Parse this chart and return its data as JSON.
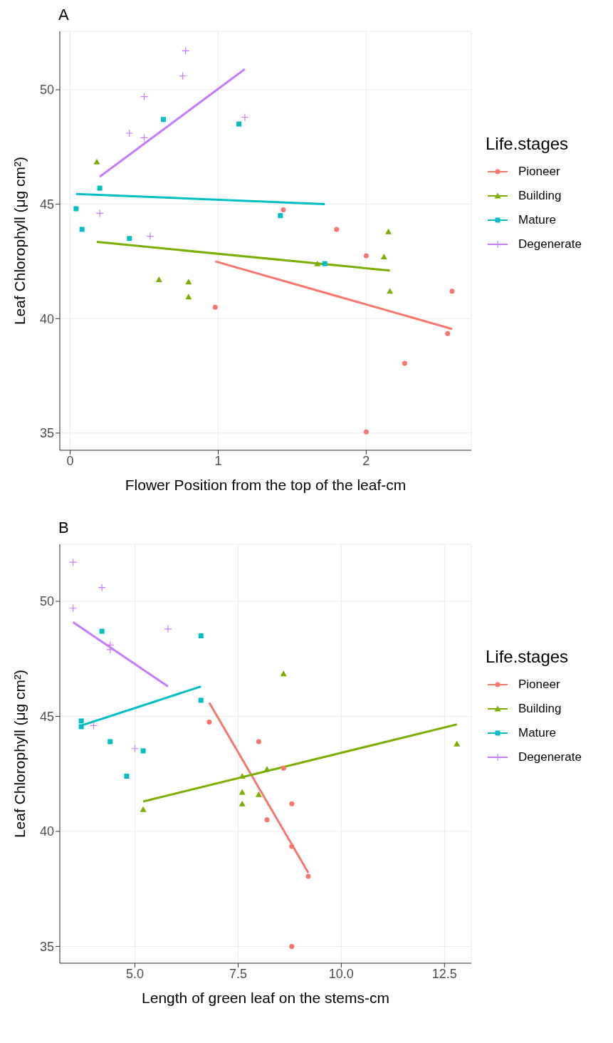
{
  "chart_data": [
    {
      "type": "scatter",
      "title": "A",
      "xlabel": "Flower Position from the top of the leaf-cm",
      "ylabel": "Leaf Chlorophyll (μg cm²)",
      "legend_title": "Life.stages",
      "legend": "right",
      "grid": true,
      "xlim": [
        -0.07,
        2.71
      ],
      "xticks": [
        0,
        1,
        2
      ],
      "ylim": [
        34.25,
        52.55
      ],
      "yticks": [
        35,
        40,
        45,
        50
      ],
      "series": [
        {
          "name": "Pioneer",
          "type": "scatter",
          "marker": "circle",
          "color": "#f8766d",
          "x": [
            1.44,
            1.8,
            2.0,
            2.58,
            0.98,
            2.55,
            2.26,
            2.0
          ],
          "values": [
            44.75,
            43.9,
            42.75,
            41.2,
            40.5,
            39.35,
            38.05,
            35.05
          ]
        },
        {
          "name": "Building",
          "type": "scatter",
          "marker": "triangle",
          "color": "#7cae00",
          "x": [
            0.18,
            2.15,
            2.12,
            1.67,
            0.6,
            0.8,
            0.8,
            2.16
          ],
          "values": [
            46.85,
            43.8,
            42.7,
            42.4,
            41.7,
            41.6,
            40.95,
            41.2
          ]
        },
        {
          "name": "Mature",
          "type": "scatter",
          "marker": "square",
          "color": "#00bfc4",
          "x": [
            0.63,
            1.14,
            0.2,
            0.04,
            0.08,
            0.4,
            1.42,
            1.72
          ],
          "values": [
            48.7,
            48.5,
            45.7,
            44.8,
            43.9,
            43.5,
            44.5,
            42.4
          ]
        },
        {
          "name": "Degenerate",
          "type": "scatter",
          "marker": "cross",
          "color": "#c77cff",
          "x": [
            0.78,
            0.76,
            0.5,
            0.4,
            0.5,
            1.18,
            0.2,
            0.54
          ],
          "values": [
            51.7,
            50.6,
            49.7,
            48.1,
            47.9,
            48.8,
            44.6,
            43.6
          ]
        },
        {
          "type": "line",
          "color": "#f8766d",
          "x": [
            0.98,
            2.58
          ],
          "values": [
            42.5,
            39.55
          ]
        },
        {
          "type": "line",
          "color": "#7cae00",
          "x": [
            0.18,
            2.16
          ],
          "values": [
            43.35,
            42.1
          ]
        },
        {
          "type": "line",
          "color": "#00bfc4",
          "x": [
            0.04,
            1.72
          ],
          "values": [
            45.45,
            45.0
          ]
        },
        {
          "type": "line",
          "color": "#c77cff",
          "x": [
            0.2,
            1.18
          ],
          "values": [
            46.2,
            50.9
          ]
        }
      ]
    },
    {
      "type": "scatter",
      "title": "B",
      "xlabel": "Length of green leaf on the stems-cm",
      "ylabel": "Leaf Chlorophyll (μg cm²)",
      "legend_title": "Life.stages",
      "legend": "right",
      "grid": true,
      "xlim": [
        3.18,
        13.15
      ],
      "xticks": [
        {
          "value": 5,
          "label": "5.0"
        },
        7.5,
        {
          "value": 10,
          "label": "10.0"
        },
        12.5
      ],
      "ylim": [
        34.27,
        52.48
      ],
      "yticks": [
        35,
        40,
        45,
        50
      ],
      "series": [
        {
          "name": "Pioneer",
          "type": "scatter",
          "marker": "circle",
          "color": "#f8766d",
          "x": [
            6.8,
            8.0,
            8.6,
            8.8,
            8.2,
            8.8,
            9.2,
            8.8
          ],
          "values": [
            44.75,
            43.9,
            42.75,
            41.2,
            40.5,
            39.35,
            38.05,
            35.0
          ]
        },
        {
          "name": "Building",
          "type": "scatter",
          "marker": "triangle",
          "color": "#7cae00",
          "x": [
            8.6,
            12.8,
            8.2,
            7.6,
            7.6,
            8.0,
            7.6,
            5.2
          ],
          "values": [
            46.85,
            43.8,
            42.7,
            42.4,
            41.7,
            41.6,
            41.2,
            40.95
          ]
        },
        {
          "name": "Mature",
          "type": "scatter",
          "marker": "square",
          "color": "#00bfc4",
          "x": [
            4.2,
            6.6,
            6.6,
            3.7,
            3.7,
            4.4,
            5.2,
            4.8
          ],
          "values": [
            48.7,
            48.5,
            45.7,
            44.8,
            44.55,
            43.9,
            43.5,
            42.4
          ]
        },
        {
          "name": "Degenerate",
          "type": "scatter",
          "marker": "cross",
          "color": "#c77cff",
          "x": [
            3.5,
            4.2,
            3.5,
            5.8,
            4.4,
            4.4,
            4.0,
            5.0
          ],
          "values": [
            51.7,
            50.6,
            49.7,
            48.8,
            48.1,
            47.9,
            44.6,
            43.6
          ]
        },
        {
          "type": "line",
          "color": "#f8766d",
          "x": [
            6.8,
            9.2
          ],
          "values": [
            45.6,
            38.2
          ]
        },
        {
          "type": "line",
          "color": "#7cae00",
          "x": [
            5.2,
            12.8
          ],
          "values": [
            41.3,
            44.65
          ]
        },
        {
          "type": "line",
          "color": "#00bfc4",
          "x": [
            3.7,
            6.6
          ],
          "values": [
            44.6,
            46.3
          ]
        },
        {
          "type": "line",
          "color": "#c77cff",
          "x": [
            3.5,
            5.8
          ],
          "values": [
            49.1,
            46.3
          ]
        }
      ]
    }
  ]
}
